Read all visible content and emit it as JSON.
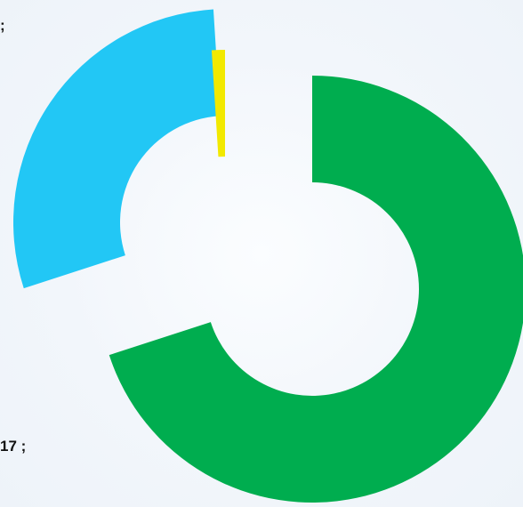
{
  "chart_data": {
    "type": "pie",
    "style": "exploded-donut",
    "series": [
      {
        "values": [
          70,
          29,
          1
        ],
        "colors": [
          "#00ad4f",
          "#22c7f5",
          "#f2e900"
        ]
      }
    ],
    "data_labels": [
      "17 ;",
      ";"
    ]
  }
}
